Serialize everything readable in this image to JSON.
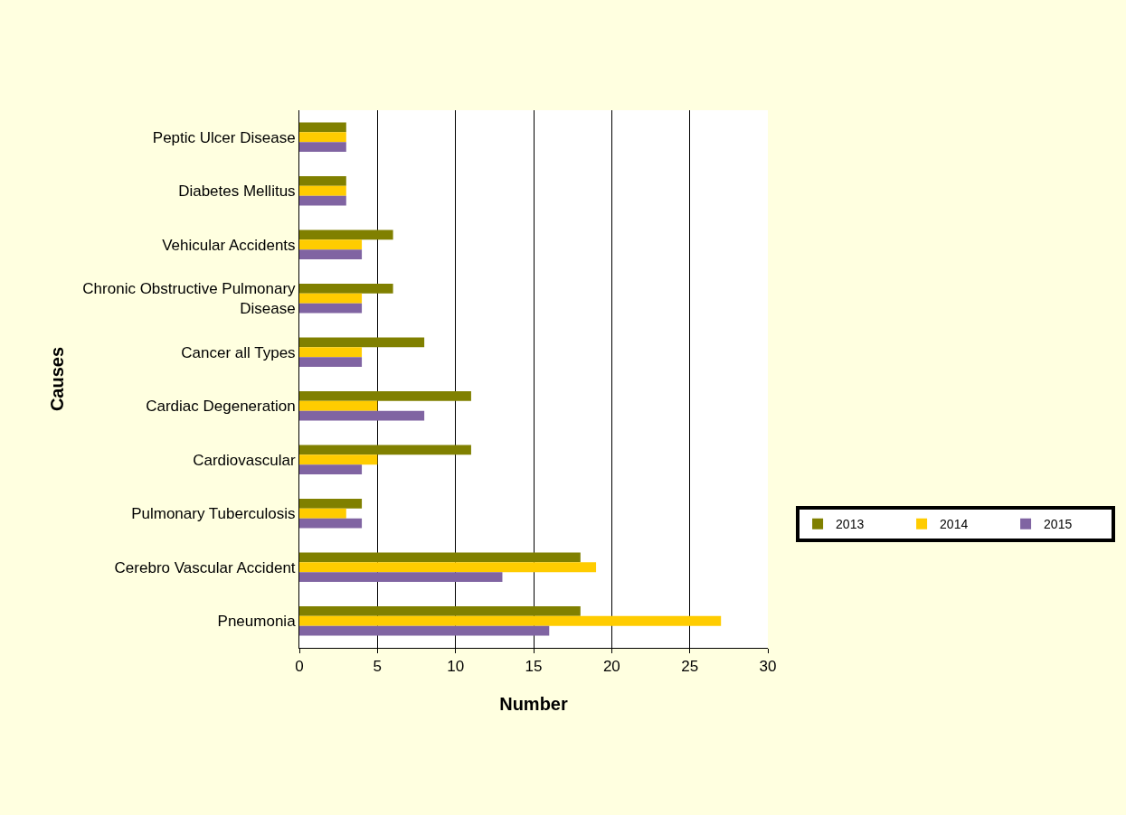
{
  "chart_data": {
    "type": "bar",
    "orientation": "horizontal",
    "xlabel": "Number",
    "ylabel": "Causes",
    "categories": [
      "Peptic Ulcer Disease",
      "Diabetes Mellitus",
      "Vehicular Accidents",
      "Chronic Obstructive Pulmonary Disease",
      "Cancer all Types",
      "Cardiac Degeneration",
      "Cardiovascular",
      "Pulmonary Tuberculosis",
      "Cerebro Vascular Accident",
      "Pneumonia"
    ],
    "series": [
      {
        "name": "2013",
        "color": "#808000",
        "values": [
          3,
          3,
          6,
          6,
          8,
          11,
          11,
          4,
          18,
          18
        ]
      },
      {
        "name": "2014",
        "color": "#ffcc00",
        "values": [
          3,
          3,
          4,
          4,
          4,
          5,
          5,
          3,
          19,
          27
        ]
      },
      {
        "name": "2015",
        "color": "#8064a2",
        "values": [
          3,
          3,
          4,
          4,
          4,
          8,
          4,
          4,
          13,
          16
        ]
      }
    ],
    "xlim": [
      0,
      30
    ],
    "xticks": [
      0,
      5,
      10,
      15,
      20,
      25,
      30
    ],
    "grid": "x",
    "legend": "right"
  }
}
